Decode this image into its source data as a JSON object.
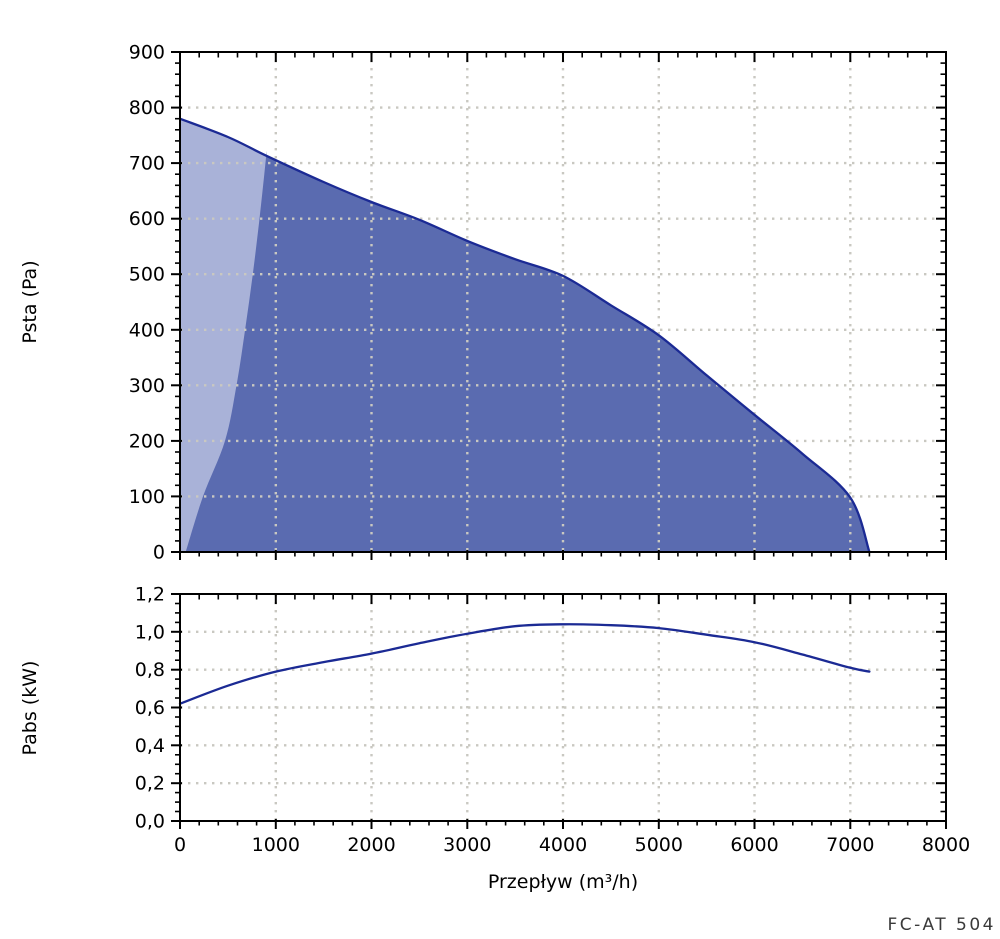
{
  "footer": {
    "model": "FC-AT 504"
  },
  "colors": {
    "curve_line": "#1b2a94",
    "operating_area_fill": "#5a6bb0",
    "low_flow_area_fill": "#a9b2d8",
    "grid_dots": "#c9c8c1",
    "axis": "#000000"
  },
  "chart_data": [
    {
      "type": "area",
      "ylabel": "Psta (Pa)",
      "xlim": [
        0,
        8000
      ],
      "ylim": [
        0,
        900
      ],
      "x_major_step": 1000,
      "x_minor_step": 200,
      "y_major_step": 100,
      "y_minor_step": 20,
      "grid": "dotted",
      "legend": "none",
      "ytick_labels": [
        "0",
        "100",
        "200",
        "300",
        "400",
        "500",
        "600",
        "700",
        "800",
        "900"
      ],
      "series": [
        {
          "name": "fan-curve-psta",
          "points": [
            [
              0,
              780
            ],
            [
              500,
              747
            ],
            [
              905,
              713
            ],
            [
              1500,
              666
            ],
            [
              2000,
              630
            ],
            [
              2500,
              598
            ],
            [
              3000,
              560
            ],
            [
              3500,
              527
            ],
            [
              4000,
              497
            ],
            [
              4500,
              444
            ],
            [
              5000,
              390
            ],
            [
              5500,
              318
            ],
            [
              6000,
              247
            ],
            [
              6500,
              177
            ],
            [
              7000,
              98
            ],
            [
              7200,
              0
            ]
          ]
        },
        {
          "name": "surge-limit-line",
          "points": [
            [
              905,
              722
            ],
            [
              880,
              680
            ],
            [
              830,
              600
            ],
            [
              760,
              500
            ],
            [
              680,
              400
            ],
            [
              590,
              300
            ],
            [
              470,
              200
            ],
            [
              240,
              100
            ],
            [
              60,
              0
            ]
          ]
        }
      ]
    },
    {
      "type": "line",
      "xlabel": "Przepływ (m³/h)",
      "ylabel": "Pabs (kW)",
      "xlim": [
        0,
        8000
      ],
      "ylim": [
        0,
        1.2
      ],
      "x_major_step": 1000,
      "x_minor_step": 200,
      "y_major_step": 0.2,
      "y_minor_step": 0.05,
      "grid": "dotted",
      "legend": "none",
      "xtick_labels": [
        "0",
        "1000",
        "2000",
        "3000",
        "4000",
        "5000",
        "6000",
        "7000",
        "8000"
      ],
      "ytick_labels": [
        "0,0",
        "0,2",
        "0,4",
        "0,6",
        "0,8",
        "1,0",
        "1,2"
      ],
      "series": [
        {
          "name": "power-curve-pabs",
          "points": [
            [
              0,
              0.62
            ],
            [
              500,
              0.715
            ],
            [
              1000,
              0.79
            ],
            [
              1500,
              0.84
            ],
            [
              2000,
              0.885
            ],
            [
              2500,
              0.94
            ],
            [
              3000,
              0.99
            ],
            [
              3500,
              1.03
            ],
            [
              4000,
              1.04
            ],
            [
              4500,
              1.035
            ],
            [
              5000,
              1.02
            ],
            [
              5500,
              0.985
            ],
            [
              6000,
              0.945
            ],
            [
              6500,
              0.88
            ],
            [
              7000,
              0.81
            ],
            [
              7200,
              0.79
            ]
          ]
        }
      ]
    }
  ]
}
